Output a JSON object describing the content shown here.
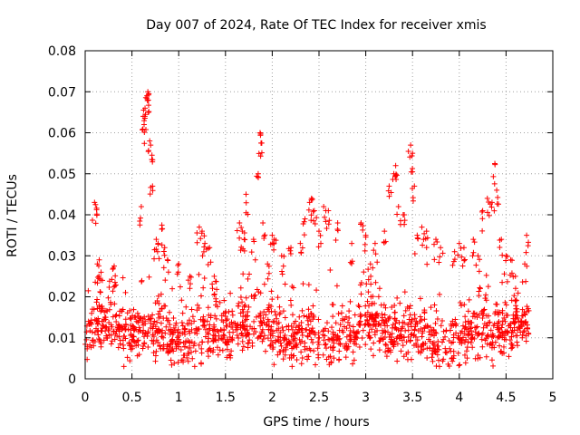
{
  "chart_data": {
    "type": "scatter",
    "title": "Day 007 of 2024, Rate Of TEC Index for receiver xmis",
    "xlabel": "GPS time / hours",
    "ylabel": "ROTI / TECUs",
    "xlim": [
      0,
      5
    ],
    "ylim": [
      0,
      0.08
    ],
    "xticks": [
      "0",
      "0.5",
      "1",
      "1.5",
      "2",
      "2.5",
      "3",
      "3.5",
      "4",
      "4.5",
      "5"
    ],
    "yticks": [
      "0",
      "0.01",
      "0.02",
      "0.03",
      "0.04",
      "0.05",
      "0.06",
      "0.07",
      "0.08"
    ],
    "grid": true,
    "marker": "+",
    "series_color": "#ff0000",
    "baseline_band": {
      "x_range": [
        0,
        4.75
      ],
      "y_range": [
        0.004,
        0.02
      ],
      "typical": 0.011
    },
    "excursions": [
      {
        "x": 0.1,
        "y": 0.043
      },
      {
        "x": 0.11,
        "y": 0.0425
      },
      {
        "x": 0.13,
        "y": 0.028
      },
      {
        "x": 0.15,
        "y": 0.029
      },
      {
        "x": 0.17,
        "y": 0.026
      },
      {
        "x": 0.3,
        "y": 0.027
      },
      {
        "x": 0.31,
        "y": 0.0275
      },
      {
        "x": 0.6,
        "y": 0.042
      },
      {
        "x": 0.62,
        "y": 0.064
      },
      {
        "x": 0.63,
        "y": 0.062
      },
      {
        "x": 0.64,
        "y": 0.066
      },
      {
        "x": 0.66,
        "y": 0.069
      },
      {
        "x": 0.67,
        "y": 0.07
      },
      {
        "x": 0.68,
        "y": 0.0695
      },
      {
        "x": 0.69,
        "y": 0.058
      },
      {
        "x": 0.7,
        "y": 0.057
      },
      {
        "x": 0.72,
        "y": 0.047
      },
      {
        "x": 0.76,
        "y": 0.034
      },
      {
        "x": 0.78,
        "y": 0.033
      },
      {
        "x": 0.82,
        "y": 0.0375
      },
      {
        "x": 0.85,
        "y": 0.032
      },
      {
        "x": 0.88,
        "y": 0.029
      },
      {
        "x": 1.0,
        "y": 0.028
      },
      {
        "x": 1.12,
        "y": 0.025
      },
      {
        "x": 1.22,
        "y": 0.037
      },
      {
        "x": 1.25,
        "y": 0.036
      },
      {
        "x": 1.28,
        "y": 0.033
      },
      {
        "x": 1.33,
        "y": 0.032
      },
      {
        "x": 1.38,
        "y": 0.025
      },
      {
        "x": 1.65,
        "y": 0.038
      },
      {
        "x": 1.68,
        "y": 0.036
      },
      {
        "x": 1.7,
        "y": 0.034
      },
      {
        "x": 1.72,
        "y": 0.045
      },
      {
        "x": 1.8,
        "y": 0.034
      },
      {
        "x": 1.85,
        "y": 0.05
      },
      {
        "x": 1.87,
        "y": 0.06
      },
      {
        "x": 1.88,
        "y": 0.0575
      },
      {
        "x": 1.9,
        "y": 0.038
      },
      {
        "x": 1.95,
        "y": 0.028
      },
      {
        "x": 2.0,
        "y": 0.035
      },
      {
        "x": 2.02,
        "y": 0.034
      },
      {
        "x": 2.1,
        "y": 0.03
      },
      {
        "x": 2.2,
        "y": 0.032
      },
      {
        "x": 2.3,
        "y": 0.033
      },
      {
        "x": 2.35,
        "y": 0.039
      },
      {
        "x": 2.4,
        "y": 0.043
      },
      {
        "x": 2.42,
        "y": 0.044
      },
      {
        "x": 2.45,
        "y": 0.041
      },
      {
        "x": 2.5,
        "y": 0.036
      },
      {
        "x": 2.55,
        "y": 0.042
      },
      {
        "x": 2.6,
        "y": 0.041
      },
      {
        "x": 2.7,
        "y": 0.038
      },
      {
        "x": 2.85,
        "y": 0.033
      },
      {
        "x": 2.95,
        "y": 0.038
      },
      {
        "x": 3.0,
        "y": 0.035
      },
      {
        "x": 3.05,
        "y": 0.028
      },
      {
        "x": 3.1,
        "y": 0.033
      },
      {
        "x": 3.2,
        "y": 0.036
      },
      {
        "x": 3.25,
        "y": 0.047
      },
      {
        "x": 3.3,
        "y": 0.05
      },
      {
        "x": 3.32,
        "y": 0.052
      },
      {
        "x": 3.35,
        "y": 0.042
      },
      {
        "x": 3.4,
        "y": 0.04
      },
      {
        "x": 3.48,
        "y": 0.057
      },
      {
        "x": 3.5,
        "y": 0.055
      },
      {
        "x": 3.52,
        "y": 0.047
      },
      {
        "x": 3.55,
        "y": 0.035
      },
      {
        "x": 3.6,
        "y": 0.037
      },
      {
        "x": 3.65,
        "y": 0.036
      },
      {
        "x": 3.75,
        "y": 0.034
      },
      {
        "x": 3.8,
        "y": 0.032
      },
      {
        "x": 3.95,
        "y": 0.031
      },
      {
        "x": 4.0,
        "y": 0.033
      },
      {
        "x": 4.05,
        "y": 0.032
      },
      {
        "x": 4.15,
        "y": 0.034
      },
      {
        "x": 4.2,
        "y": 0.03
      },
      {
        "x": 4.25,
        "y": 0.041
      },
      {
        "x": 4.3,
        "y": 0.044
      },
      {
        "x": 4.35,
        "y": 0.043
      },
      {
        "x": 4.38,
        "y": 0.0525
      },
      {
        "x": 4.4,
        "y": 0.046
      },
      {
        "x": 4.45,
        "y": 0.034
      },
      {
        "x": 4.5,
        "y": 0.03
      },
      {
        "x": 4.55,
        "y": 0.029
      },
      {
        "x": 4.6,
        "y": 0.025
      },
      {
        "x": 4.7,
        "y": 0.028
      },
      {
        "x": 4.72,
        "y": 0.035
      }
    ]
  }
}
